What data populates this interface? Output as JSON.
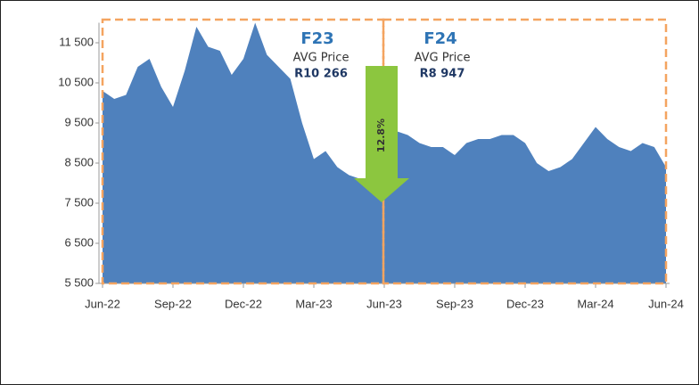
{
  "chart_data": {
    "type": "area",
    "categories": [
      "Jun-22",
      null,
      null,
      null,
      null,
      null,
      "Sep-22",
      null,
      null,
      null,
      null,
      null,
      "Dec-22",
      null,
      null,
      null,
      null,
      null,
      "Mar-23",
      null,
      null,
      null,
      null,
      null,
      "Jun-23",
      null,
      null,
      null,
      null,
      null,
      "Sep-23",
      null,
      null,
      null,
      null,
      null,
      "Dec-23",
      null,
      null,
      null,
      null,
      null,
      "Mar-24",
      null,
      null,
      null,
      null,
      null,
      "Jun-24"
    ],
    "values": [
      10300,
      10100,
      10200,
      10900,
      11100,
      10400,
      9900,
      10800,
      11900,
      11400,
      11300,
      10700,
      11100,
      12000,
      11200,
      10900,
      10600,
      9500,
      8600,
      8800,
      8400,
      8200,
      8100,
      7800,
      7700,
      9300,
      9200,
      9000,
      8900,
      8900,
      8700,
      9000,
      9100,
      9100,
      9200,
      9200,
      9000,
      8500,
      8300,
      8400,
      8600,
      9000,
      9400,
      9100,
      8900,
      8800,
      9000,
      8900,
      8400
    ],
    "color": "#4f81bd",
    "ylim": [
      5500,
      12000
    ],
    "yticks": [
      {
        "value": 5500,
        "label": "5 500"
      },
      {
        "value": 6500,
        "label": "6 500"
      },
      {
        "value": 7500,
        "label": "7 500"
      },
      {
        "value": 8500,
        "label": "8 500"
      },
      {
        "value": 9500,
        "label": "9 500"
      },
      {
        "value": 10500,
        "label": "10 500"
      },
      {
        "value": 11500,
        "label": "11 500"
      }
    ],
    "annotations": {
      "f23": "F23",
      "f23_label": "AVG Price",
      "f23_value": "R10 266",
      "f24": "F24",
      "f24_label": "AVG Price",
      "f24_value": "R8 947",
      "change": "12.8%"
    }
  }
}
